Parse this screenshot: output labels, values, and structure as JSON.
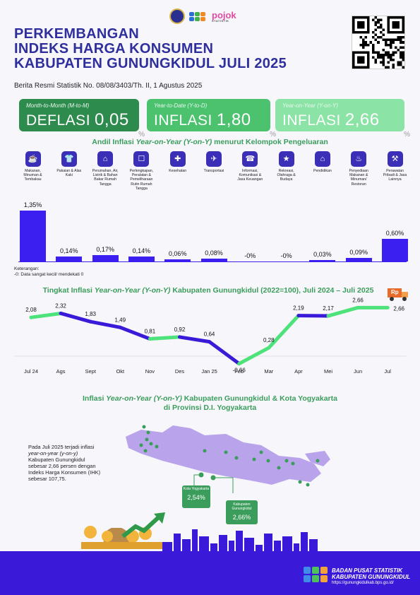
{
  "header": {
    "logo_text": "pojok",
    "logo_sub": "STATISTIK",
    "title_line1": "PERKEMBANGAN",
    "title_line2": "INDEKS HARGA KONSUMEN",
    "title_line3": "KABUPATEN GUNUNGKIDUL JULI 2025",
    "release": "Berita Resmi Statistik No. 08/08/3403/Th. II, 1 Agustus 2025"
  },
  "cards": [
    {
      "label": "Month-to-Month (M-to-M)",
      "kind": "DEFLASI",
      "value": "0,05",
      "color": "#2e8b4e",
      "pct": "%"
    },
    {
      "label": "Year-to-Date (Y-to-D)",
      "kind": "INFLASI",
      "value": "1,80",
      "color": "#4cc26f",
      "pct": "%"
    },
    {
      "label": "Year-on-Year (Y-on-Y)",
      "kind": "INFLASI",
      "value": "2,66",
      "color": "#8be3a5",
      "pct": "%"
    }
  ],
  "andil": {
    "title_pre": "Andil Inflasi ",
    "title_em": "Year-on-Year (Y-on-Y)",
    "title_post": " menurut Kelompok Pengeluaran",
    "note_line1": "Keterangan:",
    "note_line2": "-0: Data sangat kecil/ mendekati 0"
  },
  "chart_data": [
    {
      "type": "bar",
      "categories": [
        "Makanan, Minuman & Tembakau",
        "Pakaian & Alas Kaki",
        "Perumahan, Air, Listrik & Bahan Bakar Rumah Tangga",
        "Perlengkapan, Peralatan & Pemeliharaan Rutin Rumah Tangga",
        "Kesehatan",
        "Transportasi",
        "Informasi, Komunikasi & Jasa Keuangan",
        "Rekreasi, Olahraga & Budaya",
        "Pendidikan",
        "Penyediaan Makanan & Minuman/ Restoran",
        "Perawatan Pribadi & Jasa Lainnya"
      ],
      "values": [
        1.35,
        0.14,
        0.17,
        0.14,
        0.06,
        0.08,
        0,
        0,
        0.03,
        0.09,
        0.6
      ],
      "labels": [
        "1,35%",
        "0,14%",
        "0,17%",
        "0,14%",
        "0,06%",
        "0,08%",
        "-0%",
        "-0%",
        "0,03%",
        "0,09%",
        "0,60%"
      ],
      "icons": [
        "food-icon",
        "shirt-icon",
        "house-icon",
        "sofa-icon",
        "health-icon",
        "plane-icon",
        "phone-icon",
        "runner-icon",
        "graduation-cap-icon",
        "restaurant-icon",
        "tools-icon"
      ],
      "title": "",
      "ylim": [
        0,
        1.5
      ]
    },
    {
      "type": "line",
      "title_pre": "Tingkat Inflasi ",
      "title_em": "Year-on-Year (Y-on-Y)",
      "title_post": " Kabupaten Gunungkidul (2022=100), Juli 2024 – Juli 2025",
      "x": [
        "Jul 24",
        "Ags",
        "Sept",
        "Okt",
        "Nov",
        "Des",
        "Jan 25",
        "Feb",
        "Mar",
        "Apr",
        "Mei",
        "Jun",
        "Jul"
      ],
      "y": [
        2.08,
        2.32,
        1.83,
        1.49,
        0.81,
        0.92,
        0.64,
        -0.66,
        0.28,
        2.19,
        2.17,
        2.66,
        2.66
      ],
      "labels": [
        "2,08",
        "2,32",
        "1,83",
        "1,49",
        "0,81",
        "0,92",
        "0,64",
        "-0,66",
        "0,28",
        "2,19",
        "2,17",
        "2,66",
        "2,66"
      ],
      "ylim": [
        -0.8,
        2.8
      ],
      "colors": [
        "#4de37a",
        "#3a1ad8"
      ]
    }
  ],
  "map": {
    "title_pre": "Inflasi ",
    "title_em": "Year-on-Year (Y-on-Y)",
    "title_post": " Kabupaten Gunungkidul & Kota Yogyakarta",
    "title_line2": "di Provinsi D.I. Yogyakarta",
    "text_1": "Pada Juli 2025 terjadi inflasi ",
    "text_em": "year-on-year (y-on-y)",
    "text_2": " Kabupaten Gunungkidul sebesar 2,66 persen dengan Indeks Harga Konsumen (IHK) sebesar 107,75.",
    "kota_name": "Kota Yogyakarta",
    "kota_value": "2,54%",
    "kab_name": "Kabupaten Gunungkidul",
    "kab_value": "2,66%",
    "truck_label": "Rp"
  },
  "footer": {
    "org_line1": "BADAN PUSAT STATISTIK",
    "org_line2": "KABUPATEN GUNUNGKIDUL",
    "url": "https://gunungkidulkab.bps.go.id/"
  },
  "colors": {
    "title": "#2e2f9c",
    "accent_green": "#3a9d5b",
    "bar": "#3a1ff0",
    "footer": "#3a1ad8"
  }
}
